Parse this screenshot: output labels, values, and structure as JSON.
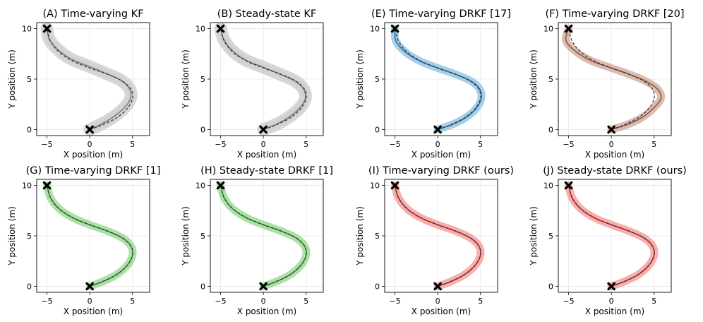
{
  "chart_data": [
    {
      "type": "line",
      "title": "(A) Time-varying KF",
      "xlabel": "X position (m)",
      "ylabel": "Y position (m)",
      "xticks": [
        -5,
        0,
        5
      ],
      "yticks": [
        0,
        5,
        10
      ],
      "xlim": [
        -6.2,
        7.0
      ],
      "ylim": [
        -0.6,
        10.6
      ],
      "band_color": "#d0d0d0",
      "line_color": "#7f7f7f",
      "start": [
        0,
        0
      ],
      "goal": [
        -5,
        10
      ],
      "spread": "large",
      "grid": true
    },
    {
      "type": "line",
      "title": "(B) Steady-state KF",
      "xlabel": "X position (m)",
      "ylabel": "Y position (m)",
      "xticks": [
        -5,
        0,
        5
      ],
      "yticks": [
        0,
        5,
        10
      ],
      "xlim": [
        -6.2,
        7.0
      ],
      "ylim": [
        -0.6,
        10.6
      ],
      "band_color": "#d0d0d0",
      "line_color": "#7f7f7f",
      "start": [
        0,
        0
      ],
      "goal": [
        -5,
        10
      ],
      "spread": "large",
      "grid": true
    },
    {
      "type": "line",
      "title": "(E) Time-varying DRKF [17]",
      "xlabel": "X position (m)",
      "ylabel": "Y position (m)",
      "xticks": [
        -5,
        0,
        5
      ],
      "yticks": [
        0,
        5,
        10
      ],
      "xlim": [
        -6.2,
        7.0
      ],
      "ylim": [
        -0.6,
        10.6
      ],
      "band_color": "#9ecae1",
      "line_color": "#1f77b4",
      "start": [
        0,
        0
      ],
      "goal": [
        -5,
        10
      ],
      "spread": "small",
      "grid": true
    },
    {
      "type": "line",
      "title": "(F) Time-varying DRKF [20]",
      "xlabel": "X position (m)",
      "ylabel": "Y position (m)",
      "xticks": [
        -5,
        0,
        5
      ],
      "yticks": [
        0,
        5,
        10
      ],
      "xlim": [
        -6.2,
        7.0
      ],
      "ylim": [
        -0.6,
        10.6
      ],
      "band_color": "#d7b5a6",
      "line_color": "#8c564b",
      "start": [
        0,
        0
      ],
      "goal": [
        -5,
        10
      ],
      "spread": "small",
      "grid": true
    },
    {
      "type": "line",
      "title": "(G) Time-varying DRKF [1]",
      "xlabel": "X position (m)",
      "ylabel": "Y position (m)",
      "xticks": [
        -5,
        0,
        5
      ],
      "yticks": [
        0,
        5,
        10
      ],
      "xlim": [
        -6.2,
        7.0
      ],
      "ylim": [
        -0.6,
        10.6
      ],
      "band_color": "#a6dba0",
      "line_color": "#2ca02c",
      "start": [
        0,
        0
      ],
      "goal": [
        -5,
        10
      ],
      "spread": "small",
      "grid": true
    },
    {
      "type": "line",
      "title": "(H) Steady-state DRKF [1]",
      "xlabel": "X position (m)",
      "ylabel": "Y position (m)",
      "xticks": [
        -5,
        0,
        5
      ],
      "yticks": [
        0,
        5,
        10
      ],
      "xlim": [
        -6.2,
        7.0
      ],
      "ylim": [
        -0.6,
        10.6
      ],
      "band_color": "#a6dba0",
      "line_color": "#2ca02c",
      "start": [
        0,
        0
      ],
      "goal": [
        -5,
        10
      ],
      "spread": "small",
      "grid": true
    },
    {
      "type": "line",
      "title": "(I) Time-varying DRKF (ours)",
      "xlabel": "X position (m)",
      "ylabel": "Y position (m)",
      "xticks": [
        -5,
        0,
        5
      ],
      "yticks": [
        0,
        5,
        10
      ],
      "xlim": [
        -6.2,
        7.0
      ],
      "ylim": [
        -0.6,
        10.6
      ],
      "band_color": "#f4a6a6",
      "line_color": "#d62728",
      "start": [
        0,
        0
      ],
      "goal": [
        -5,
        10
      ],
      "spread": "small",
      "grid": true
    },
    {
      "type": "line",
      "title": "(J) Steady-state DRKF (ours)",
      "xlabel": "X position (m)",
      "ylabel": "Y position (m)",
      "xticks": [
        -5,
        0,
        5
      ],
      "yticks": [
        0,
        5,
        10
      ],
      "xlim": [
        -6.2,
        7.0
      ],
      "ylim": [
        -0.6,
        10.6
      ],
      "band_color": "#f4a6a6",
      "line_color": "#d62728",
      "start": [
        0,
        0
      ],
      "goal": [
        -5,
        10
      ],
      "spread": "small",
      "grid": true
    }
  ],
  "reference_path": {
    "style": "dashed",
    "color": "#333333",
    "points": [
      [
        0,
        0
      ],
      [
        1.6,
        0.5
      ],
      [
        3.2,
        1.2
      ],
      [
        4.4,
        2.1
      ],
      [
        5.0,
        3.1
      ],
      [
        4.8,
        4.0
      ],
      [
        3.8,
        4.8
      ],
      [
        2.0,
        5.5
      ],
      [
        0,
        6.1
      ],
      [
        -2.0,
        6.8
      ],
      [
        -3.6,
        7.7
      ],
      [
        -4.6,
        8.8
      ],
      [
        -5,
        10
      ]
    ]
  },
  "estimate_paths": {
    "A": [
      [
        0,
        0
      ],
      [
        1.5,
        0.6
      ],
      [
        3.0,
        1.4
      ],
      [
        4.2,
        2.3
      ],
      [
        4.8,
        3.2
      ],
      [
        4.6,
        4.1
      ],
      [
        3.6,
        4.9
      ],
      [
        1.8,
        5.6
      ],
      [
        -0.2,
        6.3
      ],
      [
        -2.2,
        7.0
      ],
      [
        -3.7,
        7.9
      ],
      [
        -4.7,
        8.9
      ],
      [
        -5,
        10
      ]
    ],
    "B": [
      [
        0,
        0
      ],
      [
        1.6,
        0.55
      ],
      [
        3.1,
        1.3
      ],
      [
        4.3,
        2.2
      ],
      [
        4.9,
        3.1
      ],
      [
        4.7,
        4.0
      ],
      [
        3.7,
        4.8
      ],
      [
        1.9,
        5.5
      ],
      [
        -0.1,
        6.2
      ],
      [
        -2.1,
        6.9
      ],
      [
        -3.6,
        7.8
      ],
      [
        -4.6,
        8.9
      ],
      [
        -5,
        10
      ]
    ],
    "E": [
      [
        0,
        0
      ],
      [
        1.7,
        0.5
      ],
      [
        3.3,
        1.2
      ],
      [
        4.5,
        2.1
      ],
      [
        5.1,
        3.1
      ],
      [
        4.9,
        4.0
      ],
      [
        3.9,
        4.8
      ],
      [
        2.0,
        5.5
      ],
      [
        0,
        6.1
      ],
      [
        -2.1,
        6.8
      ],
      [
        -3.8,
        7.7
      ],
      [
        -4.9,
        8.8
      ],
      [
        -5,
        10
      ]
    ],
    "F": [
      [
        0,
        0
      ],
      [
        1.9,
        0.5
      ],
      [
        3.6,
        1.2
      ],
      [
        4.9,
        2.1
      ],
      [
        5.8,
        3.1
      ],
      [
        5.4,
        4.0
      ],
      [
        4.0,
        4.8
      ],
      [
        2.0,
        5.5
      ],
      [
        0,
        6.1
      ],
      [
        -2.3,
        6.8
      ],
      [
        -4.1,
        7.7
      ],
      [
        -5.3,
        8.8
      ],
      [
        -5,
        10
      ]
    ],
    "G": [
      [
        0,
        0
      ],
      [
        1.6,
        0.5
      ],
      [
        3.2,
        1.2
      ],
      [
        4.4,
        2.1
      ],
      [
        5.0,
        3.1
      ],
      [
        4.8,
        4.0
      ],
      [
        3.8,
        4.8
      ],
      [
        2.0,
        5.5
      ],
      [
        0,
        6.1
      ],
      [
        -2.0,
        6.8
      ],
      [
        -3.6,
        7.7
      ],
      [
        -4.6,
        8.8
      ],
      [
        -5,
        10
      ]
    ],
    "H": [
      [
        0,
        0
      ],
      [
        1.6,
        0.5
      ],
      [
        3.2,
        1.2
      ],
      [
        4.4,
        2.1
      ],
      [
        5.0,
        3.1
      ],
      [
        4.8,
        4.0
      ],
      [
        3.8,
        4.8
      ],
      [
        2.0,
        5.5
      ],
      [
        0,
        6.1
      ],
      [
        -2.0,
        6.8
      ],
      [
        -3.6,
        7.7
      ],
      [
        -4.6,
        8.8
      ],
      [
        -5,
        10
      ]
    ],
    "I": [
      [
        0,
        0
      ],
      [
        1.6,
        0.5
      ],
      [
        3.2,
        1.2
      ],
      [
        4.4,
        2.1
      ],
      [
        5.0,
        3.1
      ],
      [
        4.8,
        4.0
      ],
      [
        3.8,
        4.8
      ],
      [
        2.0,
        5.5
      ],
      [
        0,
        6.1
      ],
      [
        -2.0,
        6.8
      ],
      [
        -3.6,
        7.7
      ],
      [
        -4.6,
        8.8
      ],
      [
        -5,
        10
      ]
    ],
    "J": [
      [
        0,
        0
      ],
      [
        1.6,
        0.5
      ],
      [
        3.2,
        1.2
      ],
      [
        4.4,
        2.1
      ],
      [
        5.0,
        3.1
      ],
      [
        4.8,
        4.0
      ],
      [
        3.8,
        4.8
      ],
      [
        2.0,
        5.5
      ],
      [
        0,
        6.1
      ],
      [
        -2.0,
        6.8
      ],
      [
        -3.6,
        7.7
      ],
      [
        -4.6,
        8.8
      ],
      [
        -5,
        10
      ]
    ]
  }
}
